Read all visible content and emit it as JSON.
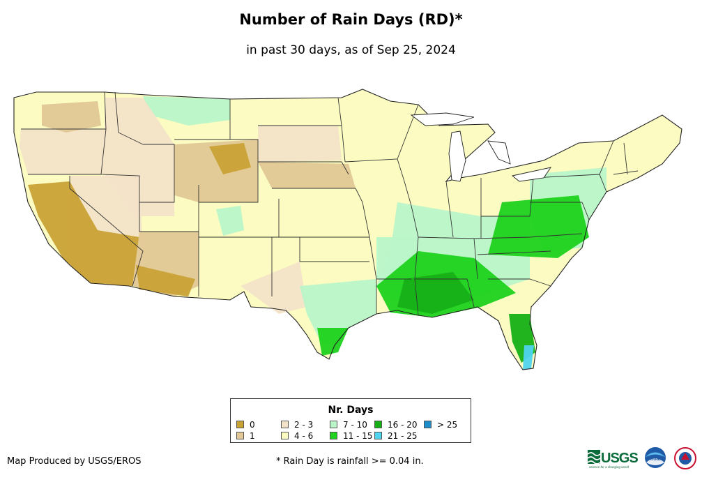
{
  "title": "Number of Rain Days (RD)*",
  "subtitle": "in past 30 days, as of Sep 25, 2024",
  "legend": {
    "title": "Nr. Days",
    "classes": [
      {
        "label": "0",
        "color": "#c9a236"
      },
      {
        "label": "1",
        "color": "#e2c896"
      },
      {
        "label": "2 - 3",
        "color": "#f3e3c8"
      },
      {
        "label": "4 - 6",
        "color": "#fbfbc2"
      },
      {
        "label": "7 - 10",
        "color": "#b9f5c9"
      },
      {
        "label": "11 - 15",
        "color": "#1ed21e"
      },
      {
        "label": "16 - 20",
        "color": "#16b016"
      },
      {
        "label": "21 - 25",
        "color": "#50d4ee"
      },
      {
        "label": "> 25",
        "color": "#1e8cc8"
      }
    ]
  },
  "credit": "Map Produced by USGS/EROS",
  "footnote": "* Rain Day is rainfall >= 0.04 in.",
  "logos": {
    "usgs": "USGS",
    "usgs_tagline": "science for a changing world",
    "noaa": "noaa"
  }
}
